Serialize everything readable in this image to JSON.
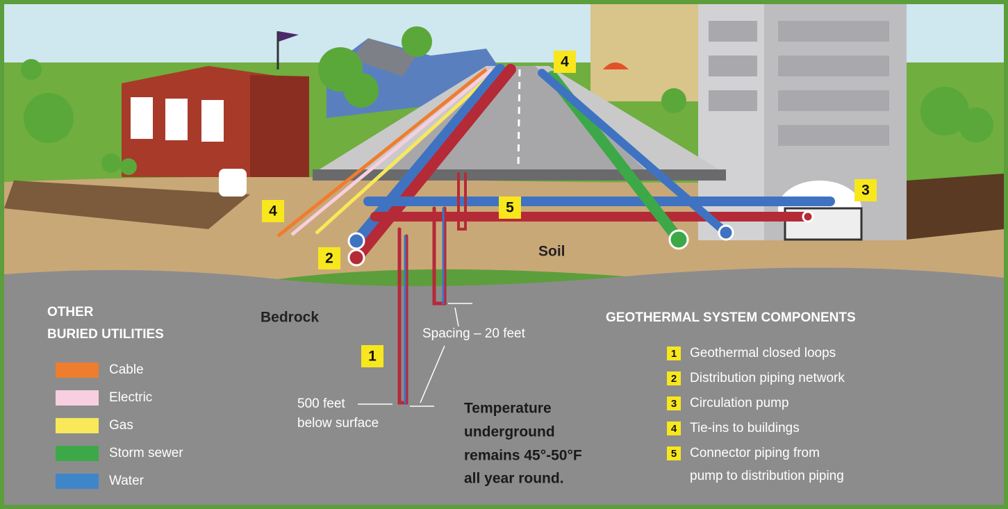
{
  "scene": {
    "soil": "Soil",
    "bedrock": "Bedrock",
    "spacing": "Spacing – 20 feet",
    "depth": [
      "500 feet",
      "below surface"
    ],
    "temperature": [
      "Temperature",
      "underground",
      "remains 45°-50°F",
      "all year round."
    ]
  },
  "utilities": {
    "title": [
      "OTHER",
      "BURIED UTILITIES"
    ],
    "items": [
      {
        "name": "Cable",
        "color": "#ef7d2d"
      },
      {
        "name": "Electric",
        "color": "#f7cfe0"
      },
      {
        "name": "Gas",
        "color": "#f8e85a"
      },
      {
        "name": "Storm sewer",
        "color": "#3da847"
      },
      {
        "name": "Water",
        "color": "#3f86c9"
      }
    ]
  },
  "components": {
    "title": "GEOTHERMAL SYSTEM COMPONENTS",
    "items": [
      {
        "number": "1",
        "label": [
          "Geothermal closed loops"
        ]
      },
      {
        "number": "2",
        "label": [
          "Distribution piping network"
        ]
      },
      {
        "number": "3",
        "label": [
          "Circulation pump"
        ]
      },
      {
        "number": "4",
        "label": [
          "Tie-ins to buildings"
        ]
      },
      {
        "number": "5",
        "label": [
          "Connector piping from",
          "pump to distribution piping"
        ]
      }
    ]
  }
}
